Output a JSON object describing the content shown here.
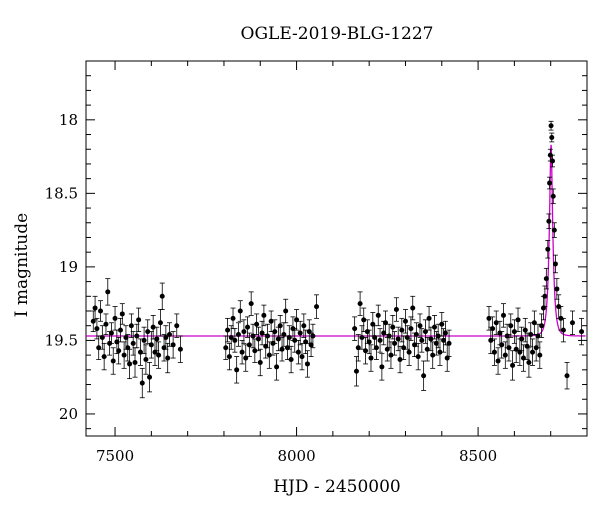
{
  "chart_data": {
    "type": "scatter",
    "title": "OGLE-2019-BLG-1227",
    "xlabel": "HJD - 2450000",
    "ylabel": "I magnitude",
    "xlim": [
      7420,
      8800
    ],
    "ylim": [
      20.15,
      17.6
    ],
    "y_inverted": true,
    "x_ticks": [
      7500,
      8000,
      8500
    ],
    "y_ticks": [
      18,
      18.5,
      19,
      19.5,
      20
    ],
    "grid": false,
    "legend": "none",
    "baseline_mag": 19.47,
    "marker_color": "#000000",
    "model_color": "#cc00cc",
    "series": [
      {
        "kind": "observations",
        "points": [
          [
            7440,
            19.37,
            0.07
          ],
          [
            7445,
            19.28,
            0.08
          ],
          [
            7450,
            19.42,
            0.07
          ],
          [
            7455,
            19.55,
            0.08
          ],
          [
            7460,
            19.3,
            0.07
          ],
          [
            7465,
            19.48,
            0.08
          ],
          [
            7470,
            19.61,
            0.09
          ],
          [
            7475,
            19.39,
            0.07
          ],
          [
            7480,
            19.17,
            0.09
          ],
          [
            7485,
            19.52,
            0.08
          ],
          [
            7490,
            19.45,
            0.07
          ],
          [
            7495,
            19.64,
            0.09
          ],
          [
            7500,
            19.35,
            0.08
          ],
          [
            7505,
            19.51,
            0.08
          ],
          [
            7510,
            19.57,
            0.09
          ],
          [
            7515,
            19.43,
            0.08
          ],
          [
            7520,
            19.32,
            0.07
          ],
          [
            7525,
            19.6,
            0.09
          ],
          [
            7530,
            19.48,
            0.08
          ],
          [
            7535,
            19.55,
            0.09
          ],
          [
            7540,
            19.66,
            0.1
          ],
          [
            7545,
            19.4,
            0.08
          ],
          [
            7550,
            19.52,
            0.08
          ],
          [
            7555,
            19.65,
            0.1
          ],
          [
            7560,
            19.47,
            0.08
          ],
          [
            7565,
            19.36,
            0.08
          ],
          [
            7570,
            19.58,
            0.09
          ],
          [
            7575,
            19.79,
            0.1
          ],
          [
            7580,
            19.5,
            0.09
          ],
          [
            7585,
            19.63,
            0.1
          ],
          [
            7590,
            19.44,
            0.08
          ],
          [
            7595,
            19.75,
            0.1
          ],
          [
            7600,
            19.53,
            0.09
          ],
          [
            7605,
            19.41,
            0.08
          ],
          [
            7610,
            19.58,
            0.09
          ],
          [
            7615,
            19.49,
            0.08
          ],
          [
            7620,
            19.6,
            0.09
          ],
          [
            7625,
            19.38,
            0.09
          ],
          [
            7630,
            19.2,
            0.09
          ],
          [
            7635,
            19.55,
            0.09
          ],
          [
            7640,
            19.48,
            0.08
          ],
          [
            7645,
            19.62,
            0.1
          ],
          [
            7650,
            19.46,
            0.08
          ],
          [
            7660,
            19.53,
            0.09
          ],
          [
            7670,
            19.4,
            0.08
          ],
          [
            7680,
            19.56,
            0.09
          ],
          [
            7805,
            19.55,
            0.08
          ],
          [
            7810,
            19.43,
            0.08
          ],
          [
            7815,
            19.61,
            0.09
          ],
          [
            7820,
            19.48,
            0.08
          ],
          [
            7825,
            19.35,
            0.07
          ],
          [
            7830,
            19.5,
            0.08
          ],
          [
            7835,
            19.7,
            0.09
          ],
          [
            7840,
            19.46,
            0.08
          ],
          [
            7845,
            19.3,
            0.07
          ],
          [
            7850,
            19.58,
            0.08
          ],
          [
            7855,
            19.44,
            0.08
          ],
          [
            7860,
            19.62,
            0.09
          ],
          [
            7865,
            19.41,
            0.07
          ],
          [
            7870,
            19.53,
            0.08
          ],
          [
            7875,
            19.25,
            0.08
          ],
          [
            7880,
            19.47,
            0.08
          ],
          [
            7885,
            19.57,
            0.08
          ],
          [
            7890,
            19.39,
            0.07
          ],
          [
            7895,
            19.49,
            0.08
          ],
          [
            7900,
            19.65,
            0.09
          ],
          [
            7905,
            19.45,
            0.08
          ],
          [
            7910,
            19.33,
            0.07
          ],
          [
            7915,
            19.54,
            0.08
          ],
          [
            7920,
            19.47,
            0.08
          ],
          [
            7925,
            19.6,
            0.09
          ],
          [
            7930,
            19.37,
            0.07
          ],
          [
            7935,
            19.52,
            0.08
          ],
          [
            7940,
            19.44,
            0.08
          ],
          [
            7945,
            19.68,
            0.09
          ],
          [
            7950,
            19.49,
            0.08
          ],
          [
            7955,
            19.4,
            0.07
          ],
          [
            7960,
            19.56,
            0.08
          ],
          [
            7965,
            19.46,
            0.08
          ],
          [
            7970,
            19.3,
            0.08
          ],
          [
            7975,
            19.55,
            0.08
          ],
          [
            7980,
            19.48,
            0.08
          ],
          [
            7985,
            19.63,
            0.09
          ],
          [
            7990,
            19.42,
            0.08
          ],
          [
            7995,
            19.5,
            0.08
          ],
          [
            8000,
            19.36,
            0.07
          ],
          [
            8005,
            19.58,
            0.08
          ],
          [
            8010,
            19.45,
            0.08
          ],
          [
            8015,
            19.61,
            0.09
          ],
          [
            8020,
            19.4,
            0.08
          ],
          [
            8025,
            19.51,
            0.08
          ],
          [
            8030,
            19.66,
            0.09
          ],
          [
            8035,
            19.44,
            0.08
          ],
          [
            8040,
            19.53,
            0.08
          ],
          [
            8045,
            19.47,
            0.08
          ],
          [
            8055,
            19.27,
            0.08
          ],
          [
            8160,
            19.42,
            0.08
          ],
          [
            8165,
            19.71,
            0.1
          ],
          [
            8170,
            19.55,
            0.09
          ],
          [
            8175,
            19.25,
            0.08
          ],
          [
            8180,
            19.48,
            0.08
          ],
          [
            8185,
            19.36,
            0.08
          ],
          [
            8190,
            19.57,
            0.09
          ],
          [
            8195,
            19.44,
            0.08
          ],
          [
            8200,
            19.51,
            0.08
          ],
          [
            8205,
            19.62,
            0.09
          ],
          [
            8210,
            19.39,
            0.08
          ],
          [
            8215,
            19.48,
            0.08
          ],
          [
            8220,
            19.55,
            0.08
          ],
          [
            8225,
            19.33,
            0.07
          ],
          [
            8230,
            19.5,
            0.08
          ],
          [
            8235,
            19.68,
            0.09
          ],
          [
            8240,
            19.45,
            0.08
          ],
          [
            8245,
            19.38,
            0.08
          ],
          [
            8250,
            19.56,
            0.08
          ],
          [
            8255,
            19.47,
            0.08
          ],
          [
            8260,
            19.6,
            0.09
          ],
          [
            8265,
            19.41,
            0.08
          ],
          [
            8270,
            19.52,
            0.08
          ],
          [
            8275,
            19.29,
            0.08
          ],
          [
            8280,
            19.49,
            0.08
          ],
          [
            8285,
            19.63,
            0.09
          ],
          [
            8290,
            19.43,
            0.08
          ],
          [
            8295,
            19.55,
            0.08
          ],
          [
            8300,
            19.37,
            0.08
          ],
          [
            8305,
            19.48,
            0.08
          ],
          [
            8310,
            19.58,
            0.09
          ],
          [
            8315,
            19.42,
            0.08
          ],
          [
            8320,
            19.28,
            0.08
          ],
          [
            8325,
            19.53,
            0.08
          ],
          [
            8330,
            19.46,
            0.08
          ],
          [
            8335,
            19.61,
            0.09
          ],
          [
            8340,
            19.4,
            0.08
          ],
          [
            8345,
            19.5,
            0.08
          ],
          [
            8350,
            19.74,
            0.1
          ],
          [
            8355,
            19.44,
            0.08
          ],
          [
            8360,
            19.56,
            0.08
          ],
          [
            8365,
            19.35,
            0.08
          ],
          [
            8370,
            19.49,
            0.08
          ],
          [
            8375,
            19.6,
            0.09
          ],
          [
            8380,
            19.41,
            0.08
          ],
          [
            8385,
            19.52,
            0.08
          ],
          [
            8390,
            19.47,
            0.08
          ],
          [
            8395,
            19.58,
            0.09
          ],
          [
            8400,
            19.39,
            0.08
          ],
          [
            8405,
            19.5,
            0.08
          ],
          [
            8410,
            19.45,
            0.08
          ],
          [
            8415,
            19.62,
            0.09
          ],
          [
            8420,
            19.52,
            0.09
          ],
          [
            8530,
            19.35,
            0.08
          ],
          [
            8535,
            19.5,
            0.09
          ],
          [
            8540,
            19.42,
            0.08
          ],
          [
            8545,
            19.58,
            0.09
          ],
          [
            8550,
            19.38,
            0.08
          ],
          [
            8555,
            19.64,
            0.09
          ],
          [
            8560,
            19.45,
            0.08
          ],
          [
            8565,
            19.53,
            0.09
          ],
          [
            8570,
            19.33,
            0.08
          ],
          [
            8575,
            19.6,
            0.09
          ],
          [
            8580,
            19.47,
            0.08
          ],
          [
            8585,
            19.55,
            0.09
          ],
          [
            8590,
            19.4,
            0.08
          ],
          [
            8595,
            19.67,
            0.1
          ],
          [
            8600,
            19.44,
            0.08
          ],
          [
            8605,
            19.56,
            0.09
          ],
          [
            8610,
            19.36,
            0.08
          ],
          [
            8615,
            19.58,
            0.09
          ],
          [
            8620,
            19.49,
            0.08
          ],
          [
            8625,
            19.62,
            0.09
          ],
          [
            8630,
            19.43,
            0.08
          ],
          [
            8635,
            19.54,
            0.09
          ],
          [
            8640,
            19.65,
            0.1
          ],
          [
            8645,
            19.46,
            0.08
          ],
          [
            8650,
            19.58,
            0.09
          ],
          [
            8655,
            19.38,
            0.08
          ],
          [
            8660,
            19.55,
            0.09
          ],
          [
            8665,
            19.47,
            0.08
          ],
          [
            8670,
            19.6,
            0.09
          ],
          [
            8675,
            19.4,
            0.08
          ],
          [
            8680,
            19.28,
            0.08
          ],
          [
            8684,
            19.2,
            0.07
          ],
          [
            8688,
            19.08,
            0.07
          ],
          [
            8692,
            18.88,
            0.06
          ],
          [
            8695,
            18.69,
            0.05
          ],
          [
            8697,
            18.43,
            0.04
          ],
          [
            8699,
            18.24,
            0.04
          ],
          [
            8701,
            18.04,
            0.03
          ],
          [
            8703,
            18.12,
            0.03
          ],
          [
            8705,
            18.28,
            0.04
          ],
          [
            8707,
            18.52,
            0.05
          ],
          [
            8710,
            18.75,
            0.05
          ],
          [
            8713,
            18.98,
            0.06
          ],
          [
            8717,
            19.15,
            0.07
          ],
          [
            8722,
            19.27,
            0.08
          ],
          [
            8728,
            19.35,
            0.08
          ],
          [
            8735,
            19.43,
            0.08
          ],
          [
            8745,
            19.74,
            0.09
          ],
          [
            8760,
            19.38,
            0.08
          ],
          [
            8785,
            19.44,
            0.09
          ]
        ]
      }
    ],
    "model": {
      "t0": 8701,
      "peak_mag": 18.17,
      "tE": 10
    }
  }
}
